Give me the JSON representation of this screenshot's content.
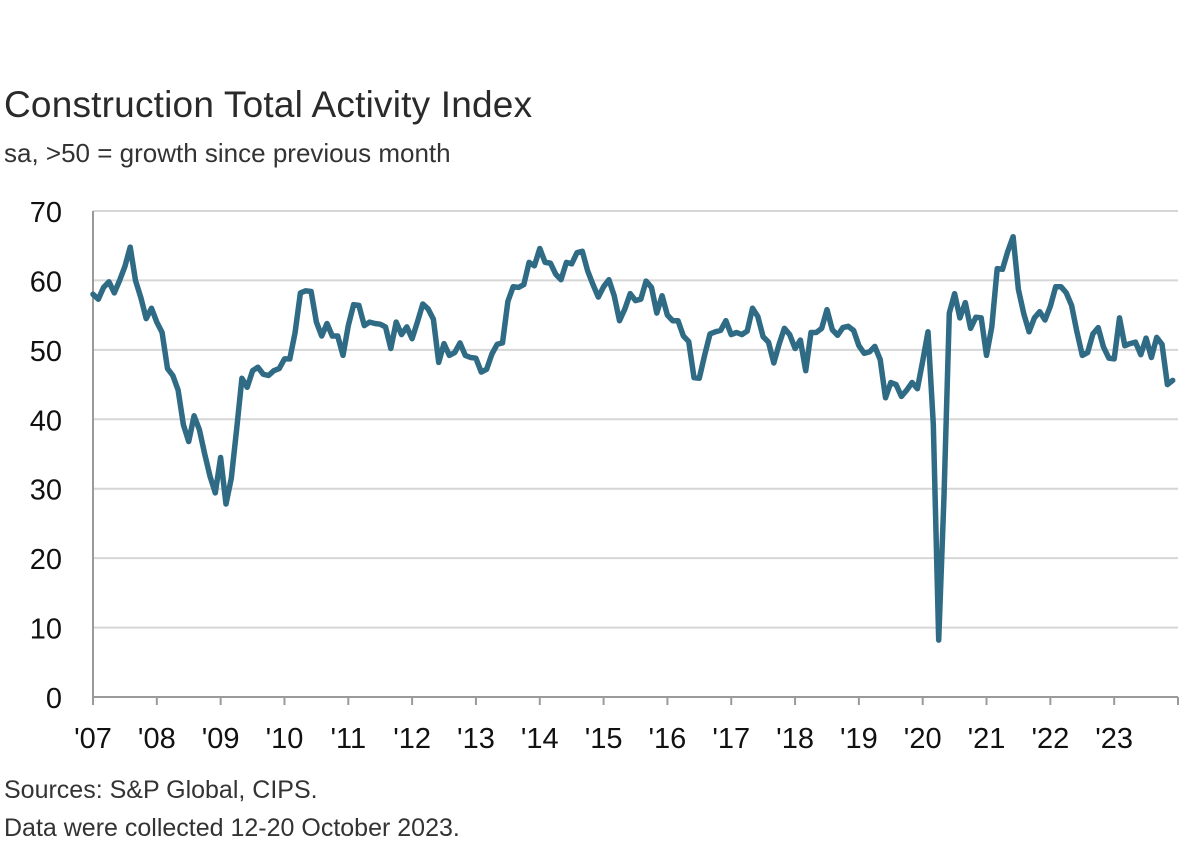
{
  "chart_data": {
    "type": "line",
    "title": "Construction Total Activity Index",
    "subtitle": "sa, >50 = growth since previous month",
    "xlabel": "",
    "ylabel": "",
    "ylim": [
      0,
      70
    ],
    "yticks": [
      "0",
      "10",
      "20",
      "30",
      "40",
      "50",
      "60",
      "70"
    ],
    "xticks": [
      "'07",
      "'08",
      "'09",
      "'10",
      "'11",
      "'12",
      "'13",
      "'14",
      "'15",
      "'16",
      "'17",
      "'18",
      "'19",
      "'20",
      "'21",
      "'22",
      "'23"
    ],
    "grid": "horizontal",
    "line_color": "#2f6b85",
    "x_start": "2007-01",
    "x_step": "monthly",
    "series": [
      {
        "values": [
          58.0,
          57.3,
          59.0,
          59.8,
          58.2,
          60.0,
          62.0,
          64.8,
          60.0,
          57.5,
          54.5,
          56.0,
          54.0,
          52.5,
          47.3,
          46.3,
          44.2,
          39.2,
          36.8,
          40.5,
          38.5,
          35.0,
          31.8,
          29.4,
          34.5,
          27.8,
          31.5,
          38.5,
          45.9,
          44.6,
          47.0,
          47.5,
          46.5,
          46.3,
          47.0,
          47.3,
          48.7,
          48.7,
          52.5,
          58.2,
          58.5,
          58.4,
          54.0,
          52.0,
          53.8,
          52.0,
          52.0,
          49.2,
          53.5,
          56.5,
          56.4,
          53.5,
          54.0,
          53.8,
          53.7,
          53.3,
          50.2,
          54.0,
          52.2,
          53.3,
          51.6,
          54.0,
          56.6,
          55.9,
          54.4,
          48.2,
          50.9,
          49.2,
          49.6,
          51.0,
          49.2,
          48.9,
          48.8,
          46.8,
          47.2,
          49.4,
          50.8,
          51.0,
          57.0,
          59.1,
          59.0,
          59.4,
          62.6,
          62.1,
          64.6,
          62.6,
          62.5,
          60.9,
          60.1,
          62.6,
          62.4,
          64.0,
          64.2,
          61.4,
          59.4,
          57.6,
          59.1,
          60.1,
          57.8,
          54.2,
          55.9,
          58.1,
          57.1,
          57.3,
          59.9,
          59.0,
          55.3,
          57.8,
          55.0,
          54.2,
          54.2,
          52.0,
          51.2,
          46.0,
          45.9,
          49.2,
          52.3,
          52.6,
          52.8,
          54.2,
          52.2,
          52.5,
          52.2,
          52.7,
          56.0,
          54.8,
          51.9,
          51.1,
          48.1,
          50.8,
          53.1,
          52.2,
          50.2,
          51.4,
          47.0,
          52.5,
          52.5,
          53.1,
          55.8,
          52.9,
          52.1,
          53.2,
          53.4,
          52.8,
          50.6,
          49.5,
          49.7,
          50.5,
          48.6,
          43.1,
          45.3,
          45.0,
          43.3,
          44.2,
          45.3,
          44.4,
          48.4,
          52.6,
          39.3,
          8.2,
          28.9,
          55.3,
          58.1,
          54.6,
          56.8,
          53.1,
          54.7,
          54.6,
          49.2,
          53.3,
          61.7,
          61.6,
          64.2,
          66.3,
          58.7,
          55.2,
          52.6,
          54.6,
          55.5,
          54.3,
          56.3,
          59.1,
          59.1,
          58.2,
          56.4,
          52.6,
          49.2,
          49.6,
          52.3,
          53.2,
          50.4,
          48.8,
          48.7,
          54.6,
          50.6,
          50.9,
          51.1,
          49.3,
          51.7,
          48.9,
          51.8,
          50.8,
          45.0,
          45.6
        ]
      }
    ]
  },
  "footer": {
    "source": "Sources: S&P Global, CIPS.",
    "note": "Data were collected 12-20 October 2023."
  }
}
